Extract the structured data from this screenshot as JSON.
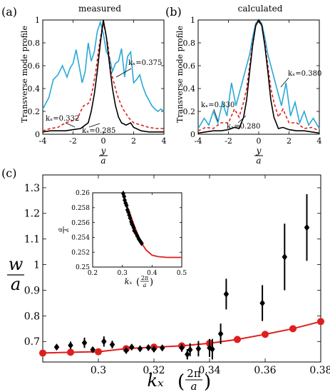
{
  "colors": {
    "cyan": "#2aa8d8",
    "red": "#e01e1e",
    "black": "#000000",
    "marker": "#000000",
    "fit": "#e01e1e"
  },
  "chart_data": [
    {
      "type": "line",
      "panel_label": "(a)",
      "title": "measured",
      "xlabel_num": "y",
      "xlabel_den": "a",
      "ylabel": "Transverse mode profile",
      "xlim": [
        -4,
        4
      ],
      "ylim": [
        0,
        1
      ],
      "xticks": [
        "-4",
        "-2",
        "0",
        "2",
        "4"
      ],
      "yticks": [
        "0",
        "0.2",
        "0.4",
        "0.6",
        "0.8",
        "1"
      ],
      "annotations": [
        "kₓ=0.375",
        "kₓ=0.332",
        "kₓ=0.285"
      ],
      "series": [
        {
          "color": "cyan",
          "style": "solid",
          "x": [
            -4,
            -3.6,
            -3.3,
            -3,
            -2.7,
            -2.4,
            -2.2,
            -2,
            -1.8,
            -1.6,
            -1.4,
            -1.2,
            -1.0,
            -0.8,
            -0.6,
            -0.4,
            -0.2,
            0,
            0.2,
            0.4,
            0.6,
            0.8,
            1.0,
            1.2,
            1.4,
            1.6,
            1.8,
            2.0,
            2.2,
            2.4,
            2.6,
            2.8,
            3.0,
            3.2,
            3.4,
            3.6,
            3.8,
            4
          ],
          "y": [
            0.22,
            0.32,
            0.48,
            0.52,
            0.6,
            0.5,
            0.58,
            0.62,
            0.74,
            0.6,
            0.45,
            0.55,
            0.8,
            0.64,
            0.72,
            0.9,
            0.98,
            0.88,
            0.72,
            0.68,
            0.55,
            0.62,
            0.64,
            0.75,
            0.5,
            0.68,
            0.72,
            0.45,
            0.48,
            0.52,
            0.42,
            0.35,
            0.3,
            0.25,
            0.22,
            0.2,
            0.22,
            0.2
          ]
        },
        {
          "color": "red",
          "style": "dashed",
          "x": [
            -4,
            -3.5,
            -3,
            -2.5,
            -2.0,
            -1.7,
            -1.5,
            -1.3,
            -1.1,
            -0.9,
            -0.7,
            -0.5,
            -0.3,
            -0.1,
            0,
            0.1,
            0.3,
            0.5,
            0.7,
            0.9,
            1.1,
            1.3,
            1.5,
            1.7,
            2.0,
            2.5,
            3,
            3.5,
            4
          ],
          "y": [
            0.03,
            0.05,
            0.06,
            0.1,
            0.12,
            0.14,
            0.2,
            0.25,
            0.26,
            0.28,
            0.4,
            0.55,
            0.75,
            0.92,
            0.96,
            0.92,
            0.78,
            0.55,
            0.45,
            0.35,
            0.28,
            0.22,
            0.18,
            0.14,
            0.1,
            0.08,
            0.06,
            0.05,
            0.05
          ]
        },
        {
          "color": "black",
          "style": "solid",
          "x": [
            -4,
            -3.5,
            -3,
            -2.5,
            -2,
            -1.5,
            -1.2,
            -1.0,
            -0.8,
            -0.6,
            -0.4,
            -0.2,
            0,
            0.2,
            0.4,
            0.6,
            0.8,
            1.0,
            1.2,
            1.5,
            1.8,
            2.0,
            2.5,
            3,
            3.5,
            4
          ],
          "y": [
            0.02,
            0.03,
            0.03,
            0.03,
            0.04,
            0.05,
            0.08,
            0.1,
            0.2,
            0.35,
            0.55,
            0.8,
            1.0,
            0.85,
            0.62,
            0.4,
            0.25,
            0.15,
            0.1,
            0.08,
            0.1,
            0.06,
            0.03,
            0.02,
            0.02,
            0.02
          ]
        }
      ]
    },
    {
      "type": "line",
      "panel_label": "(b)",
      "title": "calculated",
      "xlabel_num": "y",
      "xlabel_den": "a",
      "ylabel": "Transverse mode profile",
      "xlim": [
        -4,
        4
      ],
      "ylim": [
        0,
        1
      ],
      "xticks": [
        "-4",
        "-2",
        "0",
        "2",
        "4"
      ],
      "yticks": [
        "0",
        "0.2",
        "0.4",
        "0.6",
        "0.8",
        "1"
      ],
      "annotations": [
        "kₓ=0.380",
        "kₓ=0.330",
        "kₓ=0.280"
      ],
      "series": [
        {
          "color": "cyan",
          "style": "solid",
          "x": [
            -4,
            -3.6,
            -3.3,
            -3.0,
            -2.7,
            -2.4,
            -2.1,
            -1.8,
            -1.5,
            -1.2,
            -0.9,
            -0.6,
            -0.4,
            -0.2,
            0,
            0.2,
            0.4,
            0.6,
            0.9,
            1.2,
            1.5,
            1.8,
            2.1,
            2.4,
            2.7,
            3.0,
            3.3,
            3.6,
            4
          ],
          "y": [
            0.05,
            0.14,
            0.08,
            0.2,
            0.1,
            0.28,
            0.16,
            0.45,
            0.25,
            0.4,
            0.55,
            0.7,
            0.85,
            0.97,
            1.0,
            0.97,
            0.85,
            0.7,
            0.55,
            0.4,
            0.25,
            0.45,
            0.16,
            0.28,
            0.1,
            0.2,
            0.08,
            0.14,
            0.05
          ]
        },
        {
          "color": "red",
          "style": "dashed",
          "x": [
            -4,
            -3.5,
            -3,
            -2.5,
            -2,
            -1.6,
            -1.3,
            -1.0,
            -0.8,
            -0.6,
            -0.4,
            -0.2,
            0,
            0.2,
            0.4,
            0.6,
            0.8,
            1.0,
            1.3,
            1.6,
            2,
            2.5,
            3,
            3.5,
            4
          ],
          "y": [
            0.03,
            0.06,
            0.05,
            0.1,
            0.1,
            0.22,
            0.15,
            0.28,
            0.4,
            0.6,
            0.8,
            0.96,
            0.98,
            0.96,
            0.8,
            0.6,
            0.4,
            0.28,
            0.15,
            0.22,
            0.1,
            0.1,
            0.05,
            0.06,
            0.03
          ]
        },
        {
          "color": "black",
          "style": "solid",
          "x": [
            -4,
            -3.5,
            -3,
            -2.5,
            -2,
            -1.6,
            -1.3,
            -1.0,
            -0.8,
            -0.6,
            -0.4,
            -0.2,
            0,
            0.2,
            0.4,
            0.6,
            0.8,
            1.0,
            1.3,
            1.6,
            2,
            2.5,
            3,
            3.5,
            4
          ],
          "y": [
            0.01,
            0.02,
            0.03,
            0.03,
            0.04,
            0.06,
            0.05,
            0.15,
            0.3,
            0.55,
            0.78,
            0.95,
            1.0,
            0.95,
            0.78,
            0.55,
            0.3,
            0.15,
            0.05,
            0.06,
            0.04,
            0.03,
            0.03,
            0.02,
            0.01
          ]
        }
      ]
    },
    {
      "type": "scatter",
      "panel_label": "(c)",
      "ylabel_num": "w",
      "ylabel_den": "a",
      "xlabel": "kₓ",
      "xlabel_unit_num": "2π",
      "xlabel_unit_den": "a",
      "xlim": [
        0.28,
        0.38
      ],
      "ylim": [
        0.62,
        1.35
      ],
      "xticks": [
        "0.3",
        "0.32",
        "0.34",
        "0.36",
        "0.38"
      ],
      "yticks": [
        "0.7",
        "0.8",
        "0.9",
        "1",
        "1.1",
        "1.2",
        "1.3"
      ],
      "measured": [
        {
          "x": 0.285,
          "y": 0.678,
          "err": 0.01
        },
        {
          "x": 0.29,
          "y": 0.685,
          "err": 0.015
        },
        {
          "x": 0.295,
          "y": 0.695,
          "err": 0.02
        },
        {
          "x": 0.298,
          "y": 0.668,
          "err": 0.01
        },
        {
          "x": 0.302,
          "y": 0.7,
          "err": 0.02
        },
        {
          "x": 0.305,
          "y": 0.688,
          "err": 0.015
        },
        {
          "x": 0.31,
          "y": 0.665,
          "err": 0.012
        },
        {
          "x": 0.312,
          "y": 0.678,
          "err": 0.01
        },
        {
          "x": 0.315,
          "y": 0.672,
          "err": 0.01
        },
        {
          "x": 0.318,
          "y": 0.676,
          "err": 0.01
        },
        {
          "x": 0.32,
          "y": 0.67,
          "err": 0.01
        },
        {
          "x": 0.323,
          "y": 0.675,
          "err": 0.01
        },
        {
          "x": 0.33,
          "y": 0.675,
          "err": 0.015
        },
        {
          "x": 0.332,
          "y": 0.65,
          "err": 0.02
        },
        {
          "x": 0.333,
          "y": 0.668,
          "err": 0.025
        },
        {
          "x": 0.336,
          "y": 0.672,
          "err": 0.03
        },
        {
          "x": 0.34,
          "y": 0.675,
          "err": 0.035
        },
        {
          "x": 0.341,
          "y": 0.67,
          "err": 0.04
        },
        {
          "x": 0.344,
          "y": 0.73,
          "err": 0.04
        },
        {
          "x": 0.346,
          "y": 0.885,
          "err": 0.06
        },
        {
          "x": 0.359,
          "y": 0.85,
          "err": 0.07
        },
        {
          "x": 0.367,
          "y": 1.03,
          "err": 0.13
        },
        {
          "x": 0.375,
          "y": 1.145,
          "err": 0.13
        }
      ],
      "calculated": {
        "x": [
          0.28,
          0.29,
          0.3,
          0.31,
          0.32,
          0.33,
          0.34,
          0.35,
          0.36,
          0.37,
          0.38
        ],
        "y": [
          0.655,
          0.658,
          0.66,
          0.672,
          0.678,
          0.683,
          0.693,
          0.708,
          0.728,
          0.75,
          0.778
        ]
      },
      "inset": {
        "ylabel_num": "a",
        "ylabel_den": "λ",
        "xlabel": "kₓ",
        "xlabel_unit_num": "2π",
        "xlabel_unit_den": "a",
        "xlim": [
          0.2,
          0.5
        ],
        "ylim": [
          0.25,
          0.26
        ],
        "xticks": [
          "0.2",
          "0.3",
          "0.4",
          "0.5"
        ],
        "yticks": [
          "0.25",
          "0.252",
          "0.254",
          "0.256",
          "0.258",
          "0.26"
        ],
        "measured": [
          {
            "x": 0.303,
            "y": 0.2599
          },
          {
            "x": 0.306,
            "y": 0.2595
          },
          {
            "x": 0.308,
            "y": 0.259
          },
          {
            "x": 0.311,
            "y": 0.2586
          },
          {
            "x": 0.314,
            "y": 0.2583
          },
          {
            "x": 0.317,
            "y": 0.2577
          },
          {
            "x": 0.32,
            "y": 0.2574
          },
          {
            "x": 0.323,
            "y": 0.257
          },
          {
            "x": 0.326,
            "y": 0.2566
          },
          {
            "x": 0.33,
            "y": 0.2561
          },
          {
            "x": 0.332,
            "y": 0.2558
          },
          {
            "x": 0.335,
            "y": 0.2556
          },
          {
            "x": 0.338,
            "y": 0.2553
          },
          {
            "x": 0.34,
            "y": 0.2549
          },
          {
            "x": 0.345,
            "y": 0.2546
          },
          {
            "x": 0.35,
            "y": 0.2542
          },
          {
            "x": 0.355,
            "y": 0.2538
          },
          {
            "x": 0.36,
            "y": 0.2535
          },
          {
            "x": 0.365,
            "y": 0.2532
          }
        ],
        "calculated": {
          "x": [
            0.3,
            0.31,
            0.32,
            0.33,
            0.34,
            0.35,
            0.36,
            0.37,
            0.38,
            0.4,
            0.42,
            0.45,
            0.5
          ],
          "y": [
            0.2598,
            0.2588,
            0.2578,
            0.2567,
            0.2556,
            0.2546,
            0.2537,
            0.2529,
            0.2523,
            0.2516,
            0.2514,
            0.2513,
            0.2513
          ]
        }
      }
    }
  ]
}
